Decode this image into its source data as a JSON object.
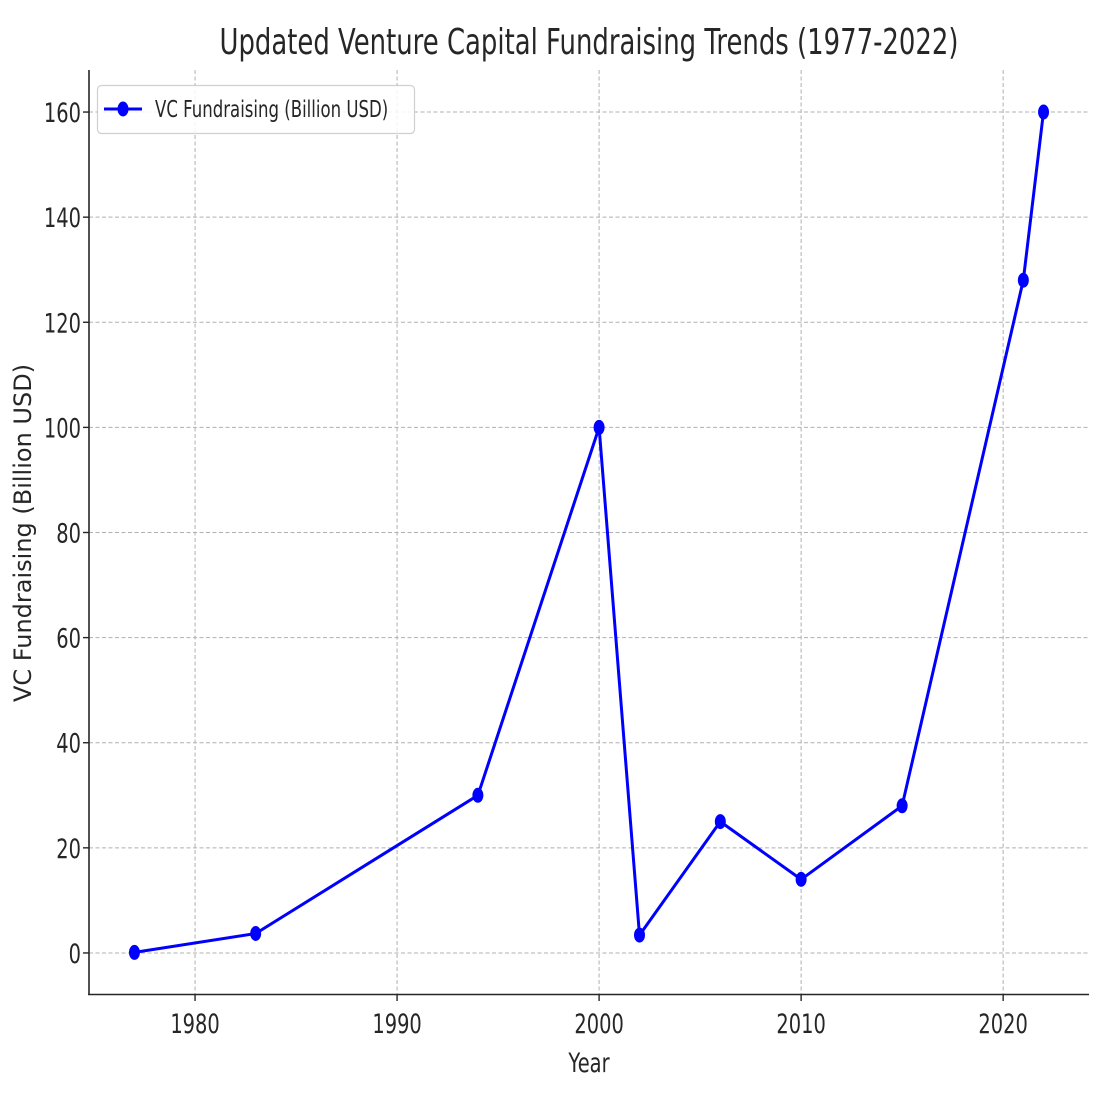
{
  "chart_data": {
    "type": "line",
    "title": "Updated Venture Capital Fundraising Trends (1977-2022)",
    "xlabel": "Year",
    "ylabel": "VC Fundraising (Billion USD)",
    "xlim": [
      1974.75,
      2024.25
    ],
    "ylim": [
      -8,
      168
    ],
    "xticks": [
      1980,
      1990,
      2000,
      2010,
      2020
    ],
    "yticks": [
      0,
      20,
      40,
      60,
      80,
      100,
      120,
      140,
      160
    ],
    "grid": true,
    "legend_position": "upper left",
    "x": [
      1977,
      1983,
      1994,
      2000,
      2002,
      2006,
      2010,
      2015,
      2021,
      2022
    ],
    "series": [
      {
        "name": "VC Fundraising (Billion USD)",
        "color": "#0000ff",
        "marker": "o",
        "values": [
          0.1,
          3.7,
          30,
          100,
          3.4,
          25,
          14,
          28,
          128,
          160
        ]
      }
    ]
  },
  "colors": {
    "line": "#0000ff",
    "grid": "#b0b0b0",
    "axis": "#262626",
    "legend_border": "#d0d0d0"
  }
}
